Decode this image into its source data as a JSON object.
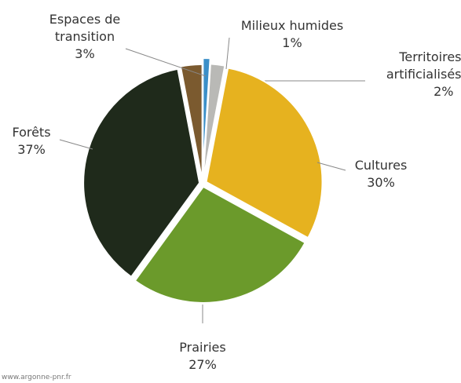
{
  "chart_data": {
    "type": "pie",
    "categories": [
      "Milieux humides",
      "Territoires artificialisés",
      "Cultures",
      "Prairies",
      "Forêts",
      "Espaces de transition"
    ],
    "values": [
      1,
      2,
      30,
      27,
      37,
      3
    ],
    "value_labels": [
      "1%",
      "2%",
      "30%",
      "27%",
      "37%",
      "3%"
    ],
    "colors": [
      "#3b8fc8",
      "#b9b9b6",
      "#e6b21f",
      "#6b9a2b",
      "#1f2a1b",
      "#7b5a2f"
    ],
    "source": "www.argonne-pnr.fr"
  }
}
